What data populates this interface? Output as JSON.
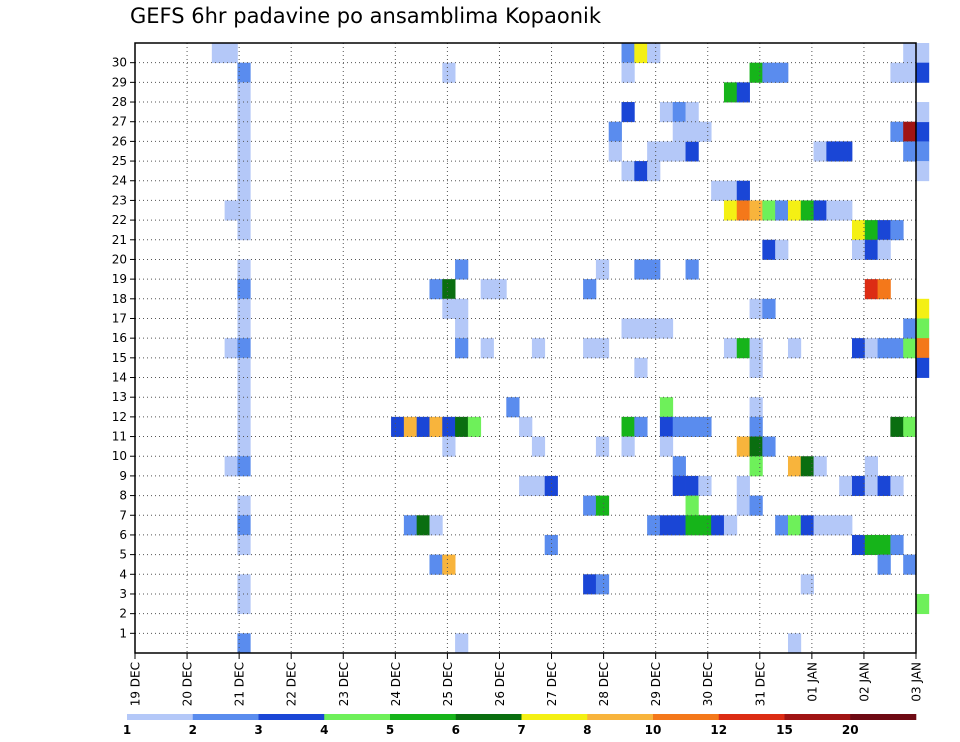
{
  "chart_data": {
    "type": "heatmap",
    "title": "GEFS 6hr padavine po ansamblima Kopaonik",
    "x_ticks": [
      "19 DEC",
      "20 DEC",
      "21 DEC",
      "22 DEC",
      "23 DEC",
      "24 DEC",
      "25 DEC",
      "26 DEC",
      "27 DEC",
      "28 DEC",
      "29 DEC",
      "30 DEC",
      "31 DEC",
      "01 JAN",
      "02 JAN",
      "03 JAN"
    ],
    "y_ticks": [
      "1",
      "2",
      "3",
      "4",
      "5",
      "6",
      "7",
      "8",
      "9",
      "10",
      "11",
      "12",
      "13",
      "14",
      "15",
      "16",
      "17",
      "18",
      "19",
      "20",
      "21",
      "22",
      "23",
      "24",
      "25",
      "26",
      "27",
      "28",
      "29",
      "30"
    ],
    "colorbar": {
      "labels": [
        "1",
        "2",
        "3",
        "4",
        "5",
        "6",
        "7",
        "8",
        "10",
        "12",
        "15",
        "20"
      ],
      "colors": [
        "#b4c8f8",
        "#5a8cee",
        "#1a46d6",
        "#6ef05a",
        "#16b41a",
        "#0a6e10",
        "#f4f014",
        "#f8b43c",
        "#f4781a",
        "#dc2c14",
        "#a01414",
        "#6e0a14"
      ]
    },
    "cells": [
      {
        "t": 6,
        "m": 30,
        "v": 1
      },
      {
        "t": 7,
        "m": 30,
        "v": 1
      },
      {
        "t": 8,
        "m": 29,
        "v": 2
      },
      {
        "t": 8,
        "m": 28,
        "v": 1
      },
      {
        "t": 8,
        "m": 27,
        "v": 1
      },
      {
        "t": 8,
        "m": 26,
        "v": 1
      },
      {
        "t": 8,
        "m": 25,
        "v": 1
      },
      {
        "t": 8,
        "m": 24,
        "v": 1
      },
      {
        "t": 8,
        "m": 23,
        "v": 1
      },
      {
        "t": 7,
        "m": 22,
        "v": 1
      },
      {
        "t": 8,
        "m": 22,
        "v": 1
      },
      {
        "t": 8,
        "m": 21,
        "v": 1
      },
      {
        "t": 8,
        "m": 19,
        "v": 1
      },
      {
        "t": 8,
        "m": 18,
        "v": 2
      },
      {
        "t": 8,
        "m": 17,
        "v": 1
      },
      {
        "t": 8,
        "m": 16,
        "v": 1
      },
      {
        "t": 7,
        "m": 15,
        "v": 1
      },
      {
        "t": 8,
        "m": 15,
        "v": 2
      },
      {
        "t": 8,
        "m": 14,
        "v": 1
      },
      {
        "t": 8,
        "m": 13,
        "v": 1
      },
      {
        "t": 8,
        "m": 12,
        "v": 1
      },
      {
        "t": 8,
        "m": 11,
        "v": 1
      },
      {
        "t": 8,
        "m": 10,
        "v": 1
      },
      {
        "t": 7,
        "m": 9,
        "v": 1
      },
      {
        "t": 8,
        "m": 9,
        "v": 2
      },
      {
        "t": 8,
        "m": 7,
        "v": 1
      },
      {
        "t": 8,
        "m": 6,
        "v": 2
      },
      {
        "t": 8,
        "m": 5,
        "v": 1
      },
      {
        "t": 8,
        "m": 3,
        "v": 1
      },
      {
        "t": 8,
        "m": 2,
        "v": 1
      },
      {
        "t": 8,
        "m": 0,
        "v": 2
      },
      {
        "t": 24,
        "m": 29,
        "v": 1
      },
      {
        "t": 20,
        "m": 11,
        "v": 3
      },
      {
        "t": 21,
        "m": 11,
        "v": 8
      },
      {
        "t": 22,
        "m": 11,
        "v": 3
      },
      {
        "t": 23,
        "m": 11,
        "v": 8
      },
      {
        "t": 24,
        "m": 11,
        "v": 3
      },
      {
        "t": 25,
        "m": 11,
        "v": 6
      },
      {
        "t": 26,
        "m": 11,
        "v": 4
      },
      {
        "t": 24,
        "m": 10,
        "v": 1
      },
      {
        "t": 21,
        "m": 6,
        "v": 2
      },
      {
        "t": 22,
        "m": 6,
        "v": 6
      },
      {
        "t": 23,
        "m": 6,
        "v": 1
      },
      {
        "t": 23,
        "m": 4,
        "v": 2
      },
      {
        "t": 24,
        "m": 4,
        "v": 8
      },
      {
        "t": 23,
        "m": 18,
        "v": 2
      },
      {
        "t": 24,
        "m": 18,
        "v": 6
      },
      {
        "t": 24,
        "m": 17,
        "v": 1
      },
      {
        "t": 25,
        "m": 17,
        "v": 1
      },
      {
        "t": 25,
        "m": 16,
        "v": 1
      },
      {
        "t": 25,
        "m": 15,
        "v": 2
      },
      {
        "t": 25,
        "m": 19,
        "v": 2
      },
      {
        "t": 25,
        "m": 0,
        "v": 1
      },
      {
        "t": 27,
        "m": 18,
        "v": 1
      },
      {
        "t": 28,
        "m": 18,
        "v": 1
      },
      {
        "t": 27,
        "m": 15,
        "v": 1
      },
      {
        "t": 29,
        "m": 12,
        "v": 2
      },
      {
        "t": 30,
        "m": 11,
        "v": 1
      },
      {
        "t": 31,
        "m": 15,
        "v": 1
      },
      {
        "t": 31,
        "m": 10,
        "v": 1
      },
      {
        "t": 30,
        "m": 8,
        "v": 1
      },
      {
        "t": 31,
        "m": 8,
        "v": 1
      },
      {
        "t": 32,
        "m": 8,
        "v": 3
      },
      {
        "t": 32,
        "m": 5,
        "v": 2
      },
      {
        "t": 35,
        "m": 18,
        "v": 2
      },
      {
        "t": 36,
        "m": 19,
        "v": 1
      },
      {
        "t": 35,
        "m": 15,
        "v": 1
      },
      {
        "t": 36,
        "m": 15,
        "v": 1
      },
      {
        "t": 36,
        "m": 10,
        "v": 1
      },
      {
        "t": 35,
        "m": 3,
        "v": 3
      },
      {
        "t": 36,
        "m": 3,
        "v": 2
      },
      {
        "t": 35,
        "m": 7,
        "v": 2
      },
      {
        "t": 36,
        "m": 7,
        "v": 5
      },
      {
        "t": 38,
        "m": 30,
        "v": 2
      },
      {
        "t": 39,
        "m": 30,
        "v": 7
      },
      {
        "t": 40,
        "m": 30,
        "v": 1
      },
      {
        "t": 38,
        "m": 29,
        "v": 1
      },
      {
        "t": 38,
        "m": 27,
        "v": 3
      },
      {
        "t": 37,
        "m": 26,
        "v": 2
      },
      {
        "t": 37,
        "m": 25,
        "v": 1
      },
      {
        "t": 40,
        "m": 25,
        "v": 1
      },
      {
        "t": 41,
        "m": 25,
        "v": 1
      },
      {
        "t": 42,
        "m": 25,
        "v": 1
      },
      {
        "t": 43,
        "m": 25,
        "v": 3
      },
      {
        "t": 38,
        "m": 24,
        "v": 1
      },
      {
        "t": 39,
        "m": 24,
        "v": 3
      },
      {
        "t": 40,
        "m": 24,
        "v": 1
      },
      {
        "t": 41,
        "m": 27,
        "v": 1
      },
      {
        "t": 42,
        "m": 27,
        "v": 2
      },
      {
        "t": 43,
        "m": 27,
        "v": 1
      },
      {
        "t": 42,
        "m": 26,
        "v": 1
      },
      {
        "t": 43,
        "m": 26,
        "v": 1
      },
      {
        "t": 44,
        "m": 26,
        "v": 1
      },
      {
        "t": 39,
        "m": 19,
        "v": 2
      },
      {
        "t": 40,
        "m": 19,
        "v": 2
      },
      {
        "t": 43,
        "m": 19,
        "v": 2
      },
      {
        "t": 38,
        "m": 16,
        "v": 1
      },
      {
        "t": 39,
        "m": 16,
        "v": 1
      },
      {
        "t": 40,
        "m": 16,
        "v": 1
      },
      {
        "t": 41,
        "m": 16,
        "v": 1
      },
      {
        "t": 39,
        "m": 14,
        "v": 1
      },
      {
        "t": 41,
        "m": 12,
        "v": 4
      },
      {
        "t": 38,
        "m": 11,
        "v": 5
      },
      {
        "t": 39,
        "m": 11,
        "v": 2
      },
      {
        "t": 41,
        "m": 11,
        "v": 3
      },
      {
        "t": 42,
        "m": 11,
        "v": 2
      },
      {
        "t": 43,
        "m": 11,
        "v": 2
      },
      {
        "t": 44,
        "m": 11,
        "v": 2
      },
      {
        "t": 38,
        "m": 10,
        "v": 1
      },
      {
        "t": 41,
        "m": 10,
        "v": 1
      },
      {
        "t": 42,
        "m": 9,
        "v": 2
      },
      {
        "t": 42,
        "m": 8,
        "v": 3
      },
      {
        "t": 43,
        "m": 8,
        "v": 3
      },
      {
        "t": 44,
        "m": 8,
        "v": 1
      },
      {
        "t": 43,
        "m": 7,
        "v": 4
      },
      {
        "t": 40,
        "m": 6,
        "v": 2
      },
      {
        "t": 41,
        "m": 6,
        "v": 3
      },
      {
        "t": 42,
        "m": 6,
        "v": 3
      },
      {
        "t": 43,
        "m": 6,
        "v": 5
      },
      {
        "t": 44,
        "m": 6,
        "v": 5
      },
      {
        "t": 45,
        "m": 6,
        "v": 3
      },
      {
        "t": 46,
        "m": 6,
        "v": 1
      },
      {
        "t": 45,
        "m": 23,
        "v": 1
      },
      {
        "t": 46,
        "m": 23,
        "v": 1
      },
      {
        "t": 47,
        "m": 23,
        "v": 3
      },
      {
        "t": 46,
        "m": 22,
        "v": 7
      },
      {
        "t": 47,
        "m": 22,
        "v": 9
      },
      {
        "t": 48,
        "m": 22,
        "v": 8
      },
      {
        "t": 49,
        "m": 22,
        "v": 4
      },
      {
        "t": 50,
        "m": 22,
        "v": 2
      },
      {
        "t": 51,
        "m": 22,
        "v": 7
      },
      {
        "t": 52,
        "m": 22,
        "v": 5
      },
      {
        "t": 53,
        "m": 22,
        "v": 3
      },
      {
        "t": 54,
        "m": 22,
        "v": 1
      },
      {
        "t": 55,
        "m": 22,
        "v": 1
      },
      {
        "t": 46,
        "m": 28,
        "v": 5
      },
      {
        "t": 47,
        "m": 28,
        "v": 3
      },
      {
        "t": 48,
        "m": 29,
        "v": 5
      },
      {
        "t": 49,
        "m": 29,
        "v": 2
      },
      {
        "t": 50,
        "m": 29,
        "v": 2
      },
      {
        "t": 48,
        "m": 17,
        "v": 1
      },
      {
        "t": 49,
        "m": 17,
        "v": 2
      },
      {
        "t": 46,
        "m": 15,
        "v": 1
      },
      {
        "t": 47,
        "m": 15,
        "v": 5
      },
      {
        "t": 48,
        "m": 15,
        "v": 1
      },
      {
        "t": 48,
        "m": 14,
        "v": 1
      },
      {
        "t": 49,
        "m": 20,
        "v": 3
      },
      {
        "t": 50,
        "m": 20,
        "v": 1
      },
      {
        "t": 48,
        "m": 12,
        "v": 1
      },
      {
        "t": 48,
        "m": 11,
        "v": 2
      },
      {
        "t": 47,
        "m": 10,
        "v": 8
      },
      {
        "t": 48,
        "m": 10,
        "v": 6
      },
      {
        "t": 49,
        "m": 10,
        "v": 2
      },
      {
        "t": 48,
        "m": 9,
        "v": 4
      },
      {
        "t": 47,
        "m": 8,
        "v": 1
      },
      {
        "t": 47,
        "m": 7,
        "v": 1
      },
      {
        "t": 48,
        "m": 7,
        "v": 2
      },
      {
        "t": 50,
        "m": 6,
        "v": 2
      },
      {
        "t": 51,
        "m": 6,
        "v": 4
      },
      {
        "t": 52,
        "m": 6,
        "v": 3
      },
      {
        "t": 53,
        "m": 6,
        "v": 1
      },
      {
        "t": 54,
        "m": 6,
        "v": 1
      },
      {
        "t": 55,
        "m": 6,
        "v": 1
      },
      {
        "t": 51,
        "m": 9,
        "v": 8
      },
      {
        "t": 52,
        "m": 9,
        "v": 6
      },
      {
        "t": 53,
        "m": 9,
        "v": 1
      },
      {
        "t": 51,
        "m": 15,
        "v": 1
      },
      {
        "t": 52,
        "m": 3,
        "v": 1
      },
      {
        "t": 51,
        "m": 0,
        "v": 1
      },
      {
        "t": 53,
        "m": 25,
        "v": 1
      },
      {
        "t": 54,
        "m": 25,
        "v": 3
      },
      {
        "t": 55,
        "m": 25,
        "v": 3
      },
      {
        "t": 56,
        "m": 21,
        "v": 7
      },
      {
        "t": 57,
        "m": 21,
        "v": 5
      },
      {
        "t": 58,
        "m": 21,
        "v": 3
      },
      {
        "t": 59,
        "m": 21,
        "v": 2
      },
      {
        "t": 56,
        "m": 20,
        "v": 1
      },
      {
        "t": 57,
        "m": 20,
        "v": 3
      },
      {
        "t": 58,
        "m": 20,
        "v": 1
      },
      {
        "t": 56,
        "m": 15,
        "v": 3
      },
      {
        "t": 57,
        "m": 15,
        "v": 1
      },
      {
        "t": 58,
        "m": 15,
        "v": 2
      },
      {
        "t": 59,
        "m": 15,
        "v": 2
      },
      {
        "t": 60,
        "m": 15,
        "v": 4
      },
      {
        "t": 57,
        "m": 18,
        "v": 10
      },
      {
        "t": 58,
        "m": 18,
        "v": 9
      },
      {
        "t": 57,
        "m": 9,
        "v": 1
      },
      {
        "t": 55,
        "m": 8,
        "v": 1
      },
      {
        "t": 56,
        "m": 8,
        "v": 3
      },
      {
        "t": 57,
        "m": 8,
        "v": 1
      },
      {
        "t": 58,
        "m": 8,
        "v": 3
      },
      {
        "t": 59,
        "m": 8,
        "v": 1
      },
      {
        "t": 56,
        "m": 5,
        "v": 3
      },
      {
        "t": 57,
        "m": 5,
        "v": 5
      },
      {
        "t": 58,
        "m": 5,
        "v": 5
      },
      {
        "t": 59,
        "m": 5,
        "v": 2
      },
      {
        "t": 58,
        "m": 4,
        "v": 2
      },
      {
        "t": 60,
        "m": 4,
        "v": 2
      },
      {
        "t": 59,
        "m": 11,
        "v": 6
      },
      {
        "t": 60,
        "m": 11,
        "v": 4
      },
      {
        "t": 59,
        "m": 26,
        "v": 2
      },
      {
        "t": 60,
        "m": 26,
        "v": 11
      },
      {
        "t": 61,
        "m": 26,
        "v": 3
      },
      {
        "t": 60,
        "m": 25,
        "v": 2
      },
      {
        "t": 61,
        "m": 25,
        "v": 2
      },
      {
        "t": 61,
        "m": 24,
        "v": 1
      },
      {
        "t": 60,
        "m": 30,
        "v": 1
      },
      {
        "t": 61,
        "m": 30,
        "v": 1
      },
      {
        "t": 59,
        "m": 29,
        "v": 1
      },
      {
        "t": 60,
        "m": 29,
        "v": 1
      },
      {
        "t": 61,
        "m": 29,
        "v": 3
      },
      {
        "t": 61,
        "m": 27,
        "v": 1
      },
      {
        "t": 61,
        "m": 17,
        "v": 7
      },
      {
        "t": 60,
        "m": 16,
        "v": 2
      },
      {
        "t": 61,
        "m": 16,
        "v": 4
      },
      {
        "t": 61,
        "m": 15,
        "v": 9
      },
      {
        "t": 61,
        "m": 14,
        "v": 3
      },
      {
        "t": 61,
        "m": 2,
        "v": 4
      }
    ]
  }
}
